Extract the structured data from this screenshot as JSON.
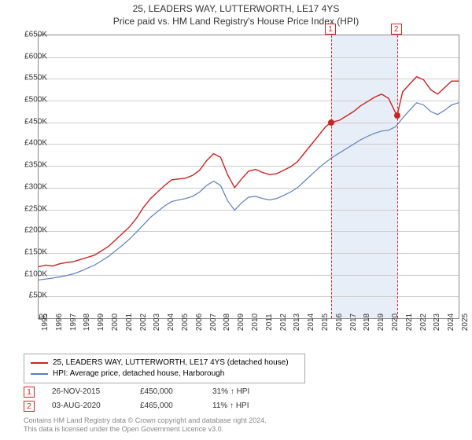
{
  "title": {
    "line1": "25, LEADERS WAY, LUTTERWORTH, LE17 4YS",
    "line2": "Price paid vs. HM Land Registry's House Price Index (HPI)"
  },
  "chart": {
    "type": "line",
    "background_color": "#ffffff",
    "grid_color": "#cccccc",
    "border_color": "#888888",
    "y": {
      "min": 0,
      "max": 650000,
      "step": 50000,
      "labels": [
        "£0",
        "£50K",
        "£100K",
        "£150K",
        "£200K",
        "£250K",
        "£300K",
        "£350K",
        "£400K",
        "£450K",
        "£500K",
        "£550K",
        "£600K",
        "£650K"
      ],
      "fontsize": 10
    },
    "x": {
      "min": 1995,
      "max": 2025,
      "labels": [
        "1995",
        "1996",
        "1997",
        "1998",
        "1999",
        "2000",
        "2001",
        "2002",
        "2003",
        "2004",
        "2005",
        "2006",
        "2007",
        "2008",
        "2009",
        "2010",
        "2011",
        "2012",
        "2013",
        "2014",
        "2015",
        "2016",
        "2017",
        "2018",
        "2019",
        "2020",
        "2021",
        "2022",
        "2023",
        "2024",
        "2025"
      ],
      "fontsize": 10
    },
    "band": {
      "start_year": 2015.9,
      "end_year": 2020.6,
      "color": "#e8eef7"
    },
    "markers": [
      {
        "label": "1",
        "year": 2015.9,
        "value": 450000
      },
      {
        "label": "2",
        "year": 2020.6,
        "value": 465000
      }
    ],
    "series": [
      {
        "name": "property",
        "color": "#cc2222",
        "width": 1.4,
        "points": [
          [
            1995,
            118000
          ],
          [
            1995.5,
            122000
          ],
          [
            1996,
            120000
          ],
          [
            1996.5,
            125000
          ],
          [
            1997,
            128000
          ],
          [
            1997.5,
            130000
          ],
          [
            1998,
            135000
          ],
          [
            1998.5,
            140000
          ],
          [
            1999,
            145000
          ],
          [
            1999.5,
            155000
          ],
          [
            2000,
            165000
          ],
          [
            2000.5,
            180000
          ],
          [
            2001,
            195000
          ],
          [
            2001.5,
            210000
          ],
          [
            2002,
            230000
          ],
          [
            2002.5,
            255000
          ],
          [
            2003,
            275000
          ],
          [
            2003.5,
            290000
          ],
          [
            2004,
            305000
          ],
          [
            2004.5,
            318000
          ],
          [
            2005,
            320000
          ],
          [
            2005.5,
            322000
          ],
          [
            2006,
            328000
          ],
          [
            2006.5,
            340000
          ],
          [
            2007,
            362000
          ],
          [
            2007.5,
            378000
          ],
          [
            2008,
            370000
          ],
          [
            2008.5,
            330000
          ],
          [
            2009,
            300000
          ],
          [
            2009.5,
            320000
          ],
          [
            2010,
            338000
          ],
          [
            2010.5,
            342000
          ],
          [
            2011,
            335000
          ],
          [
            2011.5,
            330000
          ],
          [
            2012,
            332000
          ],
          [
            2012.5,
            340000
          ],
          [
            2013,
            348000
          ],
          [
            2013.5,
            360000
          ],
          [
            2014,
            380000
          ],
          [
            2014.5,
            400000
          ],
          [
            2015,
            420000
          ],
          [
            2015.5,
            440000
          ],
          [
            2015.9,
            450000
          ],
          [
            2016.5,
            455000
          ],
          [
            2017,
            465000
          ],
          [
            2017.5,
            475000
          ],
          [
            2018,
            488000
          ],
          [
            2018.5,
            498000
          ],
          [
            2019,
            508000
          ],
          [
            2019.5,
            515000
          ],
          [
            2020,
            505000
          ],
          [
            2020.6,
            465000
          ],
          [
            2021,
            520000
          ],
          [
            2021.5,
            538000
          ],
          [
            2022,
            555000
          ],
          [
            2022.5,
            548000
          ],
          [
            2023,
            525000
          ],
          [
            2023.5,
            515000
          ],
          [
            2024,
            530000
          ],
          [
            2024.5,
            545000
          ],
          [
            2025,
            545000
          ]
        ]
      },
      {
        "name": "hpi",
        "color": "#5b7fbf",
        "width": 1.2,
        "points": [
          [
            1995,
            88000
          ],
          [
            1995.5,
            90000
          ],
          [
            1996,
            92000
          ],
          [
            1996.5,
            95000
          ],
          [
            1997,
            98000
          ],
          [
            1997.5,
            102000
          ],
          [
            1998,
            108000
          ],
          [
            1998.5,
            115000
          ],
          [
            1999,
            122000
          ],
          [
            1999.5,
            132000
          ],
          [
            2000,
            142000
          ],
          [
            2000.5,
            155000
          ],
          [
            2001,
            168000
          ],
          [
            2001.5,
            182000
          ],
          [
            2002,
            198000
          ],
          [
            2002.5,
            215000
          ],
          [
            2003,
            232000
          ],
          [
            2003.5,
            245000
          ],
          [
            2004,
            258000
          ],
          [
            2004.5,
            268000
          ],
          [
            2005,
            272000
          ],
          [
            2005.5,
            275000
          ],
          [
            2006,
            280000
          ],
          [
            2006.5,
            290000
          ],
          [
            2007,
            305000
          ],
          [
            2007.5,
            315000
          ],
          [
            2008,
            305000
          ],
          [
            2008.5,
            270000
          ],
          [
            2009,
            248000
          ],
          [
            2009.5,
            265000
          ],
          [
            2010,
            278000
          ],
          [
            2010.5,
            280000
          ],
          [
            2011,
            275000
          ],
          [
            2011.5,
            272000
          ],
          [
            2012,
            275000
          ],
          [
            2012.5,
            282000
          ],
          [
            2013,
            290000
          ],
          [
            2013.5,
            300000
          ],
          [
            2014,
            315000
          ],
          [
            2014.5,
            330000
          ],
          [
            2015,
            345000
          ],
          [
            2015.5,
            358000
          ],
          [
            2016,
            370000
          ],
          [
            2016.5,
            380000
          ],
          [
            2017,
            390000
          ],
          [
            2017.5,
            400000
          ],
          [
            2018,
            410000
          ],
          [
            2018.5,
            418000
          ],
          [
            2019,
            425000
          ],
          [
            2019.5,
            430000
          ],
          [
            2020,
            432000
          ],
          [
            2020.5,
            440000
          ],
          [
            2021,
            460000
          ],
          [
            2021.5,
            478000
          ],
          [
            2022,
            495000
          ],
          [
            2022.5,
            490000
          ],
          [
            2023,
            475000
          ],
          [
            2023.5,
            468000
          ],
          [
            2024,
            478000
          ],
          [
            2024.5,
            490000
          ],
          [
            2025,
            495000
          ]
        ]
      }
    ]
  },
  "legend": {
    "items": [
      {
        "color": "#cc2222",
        "label": "25, LEADERS WAY, LUTTERWORTH, LE17 4YS (detached house)"
      },
      {
        "color": "#5b7fbf",
        "label": "HPI: Average price, detached house, Harborough"
      }
    ]
  },
  "sales": [
    {
      "marker": "1",
      "date": "26-NOV-2015",
      "price": "£450,000",
      "delta": "31% ↑ HPI"
    },
    {
      "marker": "2",
      "date": "03-AUG-2020",
      "price": "£465,000",
      "delta": "11% ↑ HPI"
    }
  ],
  "footer": {
    "line1": "Contains HM Land Registry data © Crown copyright and database right 2024.",
    "line2": "This data is licensed under the Open Government Licence v3.0."
  }
}
